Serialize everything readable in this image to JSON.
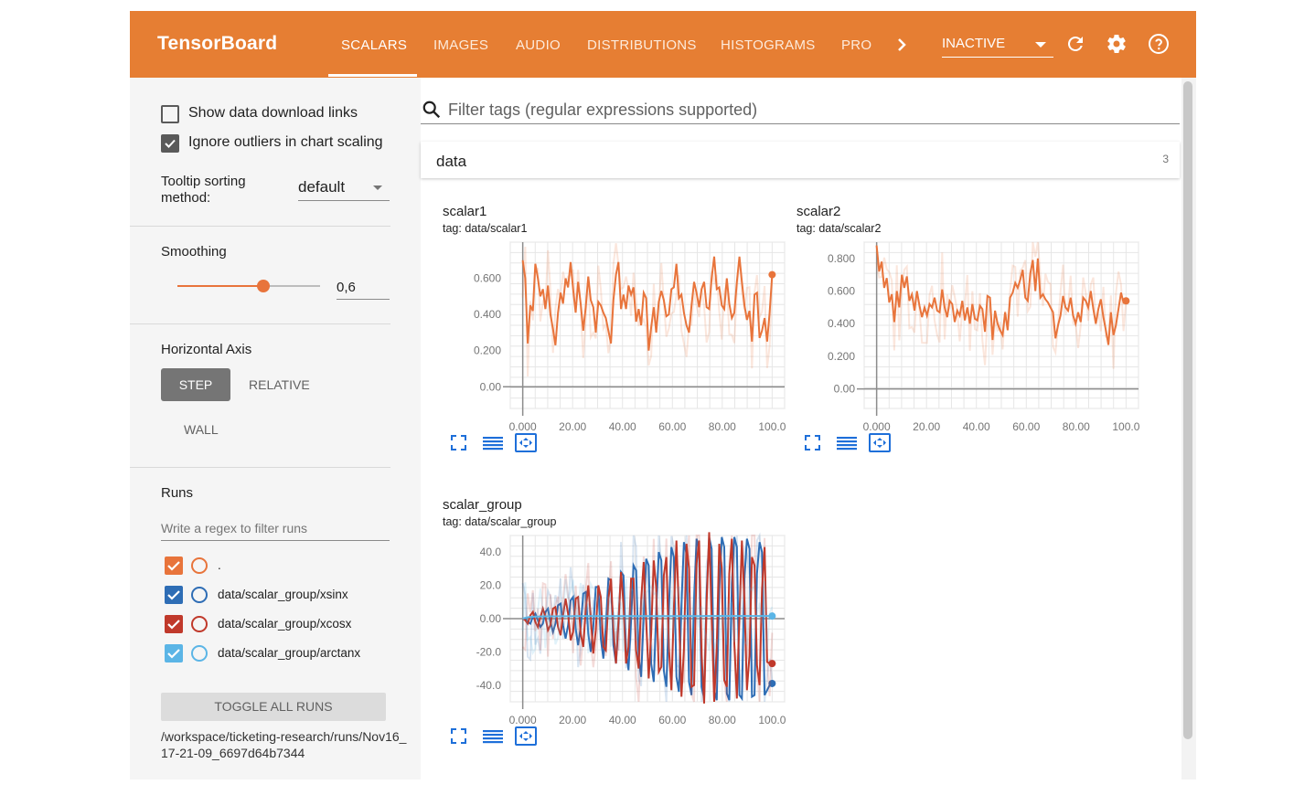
{
  "app": {
    "brand": "TensorBoard"
  },
  "tabs": [
    {
      "label": "SCALARS",
      "active": true
    },
    {
      "label": "IMAGES"
    },
    {
      "label": "AUDIO"
    },
    {
      "label": "DISTRIBUTIONS"
    },
    {
      "label": "HISTOGRAMS"
    },
    {
      "label": "PRO"
    }
  ],
  "toolbar": {
    "run_status": "INACTIVE",
    "icons": [
      "chevron-right-icon",
      "refresh-icon",
      "settings-icon",
      "help-icon"
    ]
  },
  "sidebar": {
    "show_download_links": {
      "label": "Show data download links",
      "checked": false
    },
    "ignore_outliers": {
      "label": "Ignore outliers in chart scaling",
      "checked": true
    },
    "tooltip_sort": {
      "label": "Tooltip sorting method:",
      "value": "default"
    },
    "smoothing": {
      "label": "Smoothing",
      "value": "0,6",
      "fraction": 0.6
    },
    "horizontal_axis": {
      "label": "Horizontal Axis",
      "options": [
        "STEP",
        "RELATIVE",
        "WALL"
      ],
      "selected": "STEP"
    },
    "runs": {
      "label": "Runs",
      "filter_placeholder": "Write a regex to filter runs",
      "items": [
        {
          "label": ".",
          "color": "#e8743b",
          "checked": true
        },
        {
          "label": "data/scalar_group/xsinx",
          "color": "#2e6db5",
          "checked": true
        },
        {
          "label": "data/scalar_group/xcosx",
          "color": "#c0392b",
          "checked": true
        },
        {
          "label": "data/scalar_group/arctanx",
          "color": "#5bb5e6",
          "checked": true
        }
      ],
      "toggle_all": "TOGGLE ALL RUNS",
      "logdir": "/workspace/ticketing-research/runs/Nov16_17-21-09_6697d64b7344"
    }
  },
  "main": {
    "filter_placeholder": "Filter tags (regular expressions supported)",
    "category": {
      "name": "data",
      "count": "3"
    }
  },
  "chart_data": [
    {
      "type": "line",
      "title": "scalar1",
      "subtitle": "tag: data/scalar1",
      "x_ticks": [
        "0.000",
        "20.00",
        "40.00",
        "60.00",
        "80.00",
        "100.0"
      ],
      "y_ticks": [
        "0.00",
        "0.200",
        "0.400",
        "0.600"
      ],
      "xlim": [
        -5,
        105
      ],
      "ylim": [
        -0.12,
        0.8
      ],
      "series": [
        {
          "color": "#e8743b",
          "values": [
            0.7,
            0.6,
            0.24,
            0.45,
            0.42,
            0.68,
            0.6,
            0.5,
            0.54,
            0.43,
            0.56,
            0.4,
            0.32,
            0.23,
            0.41,
            0.52,
            0.46,
            0.6,
            0.55,
            0.69,
            0.54,
            0.41,
            0.58,
            0.46,
            0.31,
            0.44,
            0.61,
            0.48,
            0.44,
            0.3,
            0.47,
            0.45,
            0.41,
            0.38,
            0.31,
            0.24,
            0.48,
            0.62,
            0.69,
            0.43,
            0.51,
            0.43,
            0.56,
            0.51,
            0.55,
            0.36,
            0.43,
            0.34,
            0.52,
            0.49,
            0.2,
            0.33,
            0.44,
            0.3,
            0.47,
            0.53,
            0.48,
            0.39,
            0.4,
            0.54,
            0.55,
            0.68,
            0.49,
            0.51,
            0.41,
            0.34,
            0.3,
            0.45,
            0.58,
            0.52,
            0.44,
            0.54,
            0.58,
            0.44,
            0.43,
            0.6,
            0.72,
            0.54,
            0.55,
            0.45,
            0.43,
            0.6,
            0.46,
            0.38,
            0.41,
            0.58,
            0.72,
            0.58,
            0.45,
            0.37,
            0.42,
            0.25,
            0.51,
            0.52,
            0.27,
            0.31,
            0.38,
            0.25,
            0.41,
            0.62
          ]
        }
      ]
    },
    {
      "type": "line",
      "title": "scalar2",
      "subtitle": "tag: data/scalar2",
      "x_ticks": [
        "0.000",
        "20.00",
        "40.00",
        "60.00",
        "80.00",
        "100.0"
      ],
      "y_ticks": [
        "0.00",
        "0.200",
        "0.400",
        "0.600",
        "0.800"
      ],
      "xlim": [
        -5,
        105
      ],
      "ylim": [
        -0.12,
        0.9
      ],
      "series": [
        {
          "color": "#e8743b",
          "values": [
            0.88,
            0.72,
            0.78,
            0.62,
            0.68,
            0.53,
            0.58,
            0.41,
            0.6,
            0.5,
            0.7,
            0.62,
            0.69,
            0.54,
            0.58,
            0.48,
            0.6,
            0.51,
            0.44,
            0.5,
            0.45,
            0.52,
            0.5,
            0.56,
            0.48,
            0.47,
            0.61,
            0.5,
            0.44,
            0.54,
            0.52,
            0.41,
            0.48,
            0.45,
            0.54,
            0.42,
            0.5,
            0.4,
            0.52,
            0.43,
            0.42,
            0.51,
            0.49,
            0.35,
            0.57,
            0.56,
            0.3,
            0.48,
            0.4,
            0.36,
            0.33,
            0.47,
            0.36,
            0.56,
            0.59,
            0.65,
            0.62,
            0.67,
            0.73,
            0.56,
            0.54,
            0.71,
            0.79,
            0.6,
            0.8,
            0.56,
            0.58,
            0.55,
            0.53,
            0.5,
            0.47,
            0.31,
            0.39,
            0.45,
            0.57,
            0.5,
            0.48,
            0.56,
            0.45,
            0.4,
            0.47,
            0.41,
            0.56,
            0.54,
            0.5,
            0.6,
            0.49,
            0.4,
            0.49,
            0.55,
            0.44,
            0.36,
            0.27,
            0.47,
            0.33,
            0.39,
            0.49,
            0.59,
            0.53,
            0.54
          ]
        }
      ]
    },
    {
      "type": "line",
      "title": "scalar_group",
      "subtitle": "tag: data/scalar_group",
      "x_ticks": [
        "0.000",
        "20.00",
        "40.00",
        "60.00",
        "80.00",
        "100.0"
      ],
      "y_ticks": [
        "-40.0",
        "-20.0",
        "0.00",
        "20.0",
        "40.0"
      ],
      "xlim": [
        -5,
        105
      ],
      "ylim": [
        -50,
        50
      ],
      "series": [
        {
          "color": "#2e6db5",
          "values": [
            0,
            0,
            -2,
            -3,
            1,
            3,
            -1,
            -5,
            -3,
            4,
            6,
            -2,
            -8,
            -3,
            8,
            9,
            -4,
            -12,
            -4,
            11,
            13,
            -6,
            -16,
            -5,
            15,
            16,
            -9,
            -20,
            -5,
            19,
            19,
            -12,
            -24,
            -4,
            24,
            23,
            -16,
            -27,
            -3,
            28,
            26,
            -19,
            -31,
            -1,
            32,
            29,
            -23,
            -35,
            1,
            36,
            32,
            -27,
            -38,
            3,
            40,
            35,
            -31,
            -41,
            6,
            43,
            37,
            -35,
            -44,
            9,
            46,
            39,
            -38,
            -46,
            12,
            48,
            41,
            -41,
            -48,
            15,
            49,
            42,
            -43,
            -49,
            18,
            49,
            43,
            -45,
            -49,
            21,
            49,
            43,
            -46,
            -48,
            24,
            48,
            42,
            -47,
            -46,
            27,
            46,
            40,
            -46,
            -43,
            -40,
            -39
          ]
        },
        {
          "color": "#c0392b",
          "values": [
            0,
            -1,
            -3,
            2,
            4,
            -2,
            -5,
            1,
            6,
            1,
            -7,
            -4,
            6,
            7,
            -5,
            -10,
            2,
            12,
            3,
            -13,
            -8,
            12,
            13,
            -9,
            -17,
            5,
            20,
            1,
            -21,
            -7,
            20,
            13,
            -17,
            -19,
            12,
            24,
            -6,
            -27,
            -1,
            28,
            9,
            -27,
            -17,
            24,
            24,
            -19,
            -30,
            11,
            34,
            -1,
            -36,
            -9,
            35,
            19,
            -32,
            -29,
            26,
            37,
            -17,
            -43,
            6,
            47,
            6,
            -47,
            -18,
            45,
            30,
            -41,
            -40,
            33,
            47,
            -22,
            -51,
            10,
            52,
            3,
            -50,
            -17,
            45,
            30,
            -37,
            -41,
            27,
            48,
            -15,
            -48,
            2,
            47,
            10,
            -43,
            -22,
            37,
            32,
            -28,
            -40,
            18,
            43,
            -26,
            -27,
            -27
          ]
        },
        {
          "color": "#5bb5e6",
          "values": [
            0,
            0.5,
            0.8,
            1.0,
            1.1,
            1.2,
            1.25,
            1.3,
            1.32,
            1.35,
            1.36,
            1.38,
            1.39,
            1.4,
            1.41,
            1.42,
            1.43,
            1.44,
            1.45,
            1.45,
            1.46,
            1.46,
            1.47,
            1.47,
            1.48,
            1.48,
            1.49,
            1.49,
            1.5,
            1.5,
            1.5,
            1.51,
            1.51,
            1.51,
            1.52,
            1.52,
            1.52,
            1.52,
            1.53,
            1.53,
            1.53,
            1.53,
            1.53,
            1.54,
            1.54,
            1.54,
            1.54,
            1.54,
            1.54,
            1.55,
            1.55,
            1.55,
            1.55,
            1.55,
            1.55,
            1.55,
            1.55,
            1.55,
            1.56,
            1.56,
            1.56,
            1.56,
            1.56,
            1.56,
            1.56,
            1.56,
            1.56,
            1.56,
            1.56,
            1.56,
            1.56,
            1.56,
            1.57,
            1.57,
            1.57,
            1.57,
            1.57,
            1.57,
            1.57,
            1.57,
            1.57,
            1.57,
            1.57,
            1.57,
            1.57,
            1.57,
            1.57,
            1.57,
            1.57,
            1.57,
            1.57,
            1.57,
            1.57,
            1.57,
            1.57,
            1.57,
            1.57,
            1.57,
            1.57,
            1.57
          ]
        }
      ]
    }
  ]
}
